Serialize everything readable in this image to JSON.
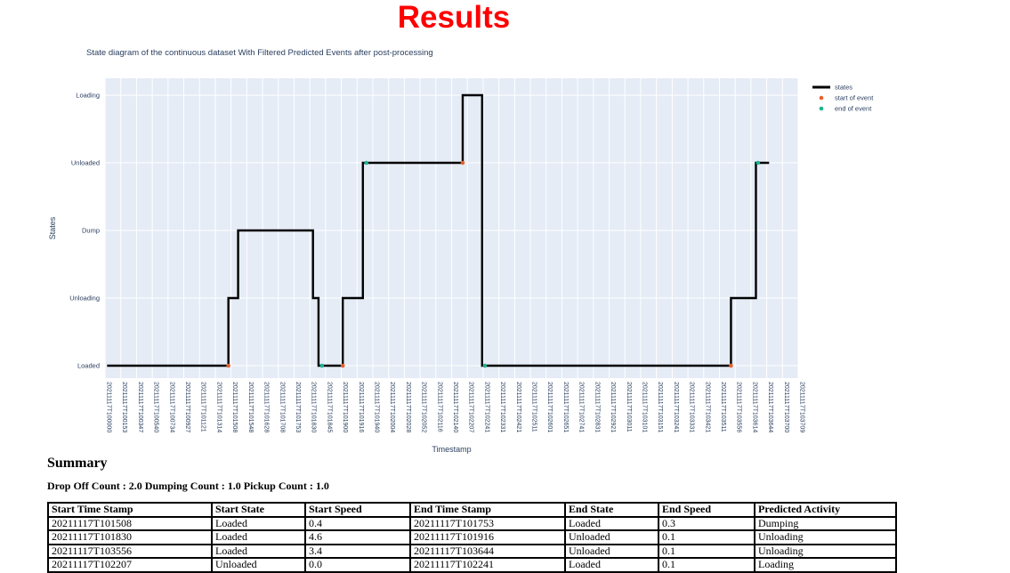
{
  "page": {
    "title": "Results"
  },
  "chart_data": {
    "type": "line",
    "subtype": "step-state-diagram",
    "title": "State diagram of the continuous dataset With Filtered Predicted Events after post-processing",
    "xlabel": "Timestamp",
    "ylabel": "States",
    "grid": true,
    "legend_position": "top-right-outside",
    "plot_bg": "#e5ecf6",
    "grid_color": "#ffffff",
    "text_color": "#2a3f5f",
    "y_categories": [
      "Loading",
      "Unloaded",
      "Dump",
      "Unloading",
      "Loaded"
    ],
    "x_ticks": [
      "20211117T100000",
      "20211117T100153",
      "20211117T100347",
      "20211117T100540",
      "20211117T100734",
      "20211117T100927",
      "20211117T101121",
      "20211117T101314",
      "20211117T101508",
      "20211117T101548",
      "20211117T101628",
      "20211117T101708",
      "20211117T101753",
      "20211117T101830",
      "20211117T101845",
      "20211117T101900",
      "20211117T101916",
      "20211117T101940",
      "20211117T102004",
      "20211117T102028",
      "20211117T102052",
      "20211117T102116",
      "20211117T102140",
      "20211117T102207",
      "20211117T102241",
      "20211117T102331",
      "20211117T102421",
      "20211117T102511",
      "20211117T102601",
      "20211117T102651",
      "20211117T102741",
      "20211117T102831",
      "20211117T102921",
      "20211117T103011",
      "20211117T103101",
      "20211117T103151",
      "20211117T103241",
      "20211117T103331",
      "20211117T103421",
      "20211117T103511",
      "20211117T103556",
      "20211117T103614",
      "20211117T103644",
      "20211117T103700",
      "20211117T103709"
    ],
    "series": [
      {
        "name": "states",
        "color": "#000000",
        "steps": [
          {
            "from": 0.003,
            "to": 0.178,
            "state": "Loaded"
          },
          {
            "from": 0.178,
            "to": 0.192,
            "state": "Unloading"
          },
          {
            "from": 0.192,
            "to": 0.3,
            "state": "Dump"
          },
          {
            "from": 0.3,
            "to": 0.308,
            "state": "Unloading"
          },
          {
            "from": 0.308,
            "to": 0.343,
            "state": "Loaded"
          },
          {
            "from": 0.343,
            "to": 0.372,
            "state": "Unloading"
          },
          {
            "from": 0.372,
            "to": 0.516,
            "state": "Unloaded"
          },
          {
            "from": 0.516,
            "to": 0.544,
            "state": "Loading"
          },
          {
            "from": 0.544,
            "to": 0.903,
            "state": "Loaded"
          },
          {
            "from": 0.903,
            "to": 0.939,
            "state": "Unloading"
          },
          {
            "from": 0.939,
            "to": 0.958,
            "state": "Unloaded"
          }
        ]
      }
    ],
    "markers": {
      "start": {
        "label": "start of event",
        "color": "#e8622d",
        "points": [
          [
            0.178,
            "Loaded"
          ],
          [
            0.343,
            "Loaded"
          ],
          [
            0.516,
            "Unloaded"
          ],
          [
            0.903,
            "Loaded"
          ]
        ]
      },
      "end": {
        "label": "end of event",
        "color": "#1db38f",
        "points": [
          [
            0.313,
            "Loaded"
          ],
          [
            0.377,
            "Unloaded"
          ],
          [
            0.548,
            "Loaded"
          ],
          [
            0.942,
            "Unloaded"
          ]
        ]
      }
    }
  },
  "summary": {
    "heading": "Summary",
    "counts": "Drop Off Count : 2.0 Dumping Count : 1.0 Pickup Count : 1.0"
  },
  "table": {
    "headers": [
      "Start Time Stamp",
      "Start State",
      "Start Speed",
      "End Time Stamp",
      "End State",
      "End Speed",
      "Predicted Activity"
    ],
    "rows": [
      [
        "20211117T101508",
        "Loaded",
        "0.4",
        "20211117T101753",
        "Loaded",
        "0.3",
        "Dumping"
      ],
      [
        "20211117T101830",
        "Loaded",
        "4.6",
        "20211117T101916",
        "Unloaded",
        "0.1",
        "Unloading"
      ],
      [
        "20211117T103556",
        "Loaded",
        "3.4",
        "20211117T103644",
        "Unloaded",
        "0.1",
        "Unloading"
      ],
      [
        "20211117T102207",
        "Unloaded",
        "0.0",
        "20211117T102241",
        "Loaded",
        "0.1",
        "Loading"
      ]
    ]
  }
}
